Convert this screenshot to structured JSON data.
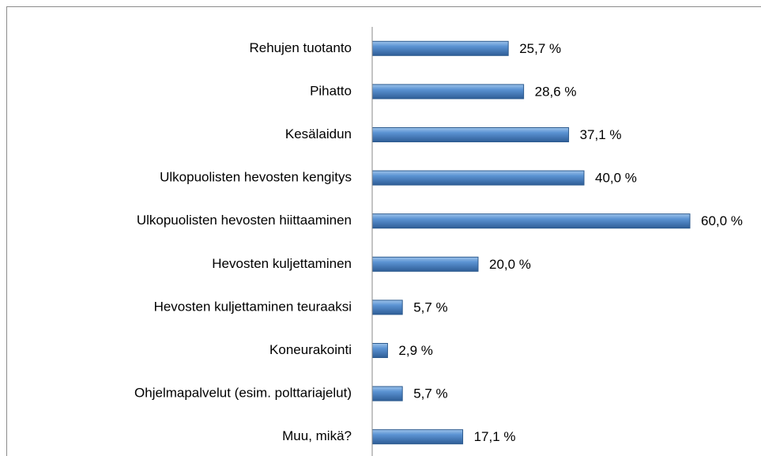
{
  "chart_data": {
    "type": "bar",
    "orientation": "horizontal",
    "categories": [
      "Rehujen tuotanto",
      "Pihatto",
      "Kesälaidun",
      "Ulkopuolisten hevosten kengitys",
      "Ulkopuolisten hevosten hiittaaminen",
      "Hevosten kuljettaminen",
      "Hevosten kuljettaminen teuraaksi",
      "Koneurakointi",
      "Ohjelmapalvelut (esim. polttariajelut)",
      "Muu, mikä?"
    ],
    "values": [
      25.7,
      28.6,
      37.1,
      40.0,
      60.0,
      20.0,
      5.7,
      2.9,
      5.7,
      17.1
    ],
    "value_labels": [
      "25,7 %",
      "28,6 %",
      "37,1 %",
      "40,0 %",
      "60,0 %",
      "20,0 %",
      "5,7 %",
      "2,9 %",
      "5,7 %",
      "17,1 %"
    ],
    "color": "#4a7ebb",
    "xlim": [
      0,
      60
    ]
  }
}
